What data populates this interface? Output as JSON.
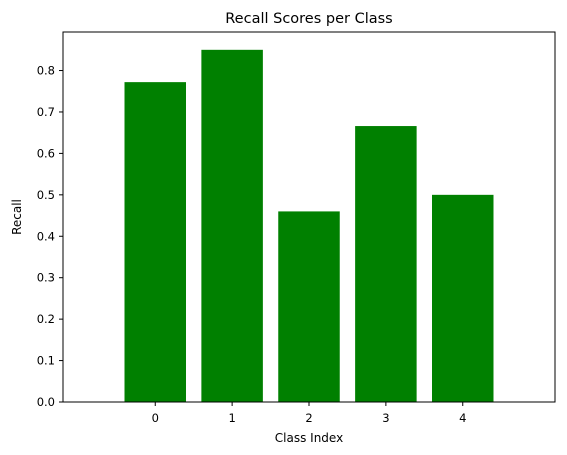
{
  "chart_data": {
    "type": "bar",
    "title": "Recall Scores per Class",
    "xlabel": "Class Index",
    "ylabel": "Recall",
    "categories": [
      "0",
      "1",
      "2",
      "3",
      "4"
    ],
    "values": [
      0.772,
      0.85,
      0.46,
      0.666,
      0.5
    ],
    "ylim": [
      0,
      0.893
    ],
    "yticks": [
      "0.0",
      "0.1",
      "0.2",
      "0.3",
      "0.4",
      "0.5",
      "0.6",
      "0.7",
      "0.8"
    ],
    "bar_color": "#008000",
    "grid": false,
    "legend": "none"
  }
}
